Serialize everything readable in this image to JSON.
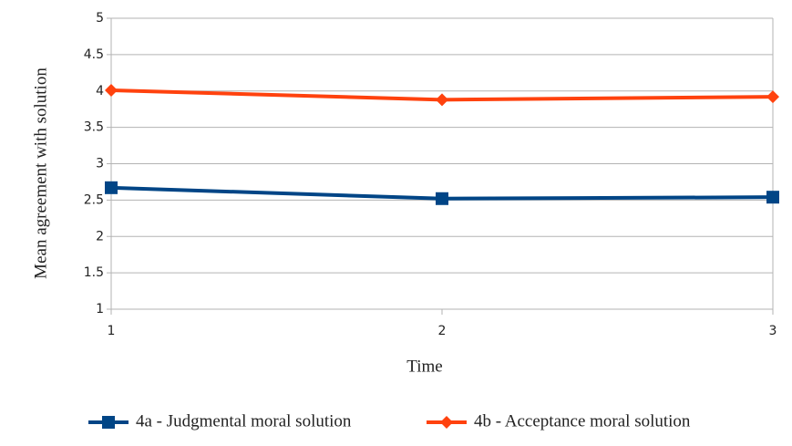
{
  "chart_data": {
    "type": "line",
    "x_label": "Time",
    "y_label": "Mean agreement with solution",
    "x": [
      1,
      2,
      3
    ],
    "xlim": [
      1,
      3
    ],
    "xticks": [
      1,
      2,
      3
    ],
    "ylim": [
      1,
      5
    ],
    "yticks": [
      1,
      1.5,
      2,
      2.5,
      3,
      3.5,
      4,
      4.5,
      5
    ],
    "grid": true,
    "legend": "bottom",
    "series": [
      {
        "name": "4a - Judgmental moral solution",
        "color": "#004586",
        "marker": "square",
        "values": [
          2.67,
          2.52,
          2.54
        ]
      },
      {
        "name": "4b - Acceptance moral solution",
        "color": "#ff420e",
        "marker": "diamond",
        "values": [
          4.01,
          3.88,
          3.92
        ]
      }
    ]
  }
}
